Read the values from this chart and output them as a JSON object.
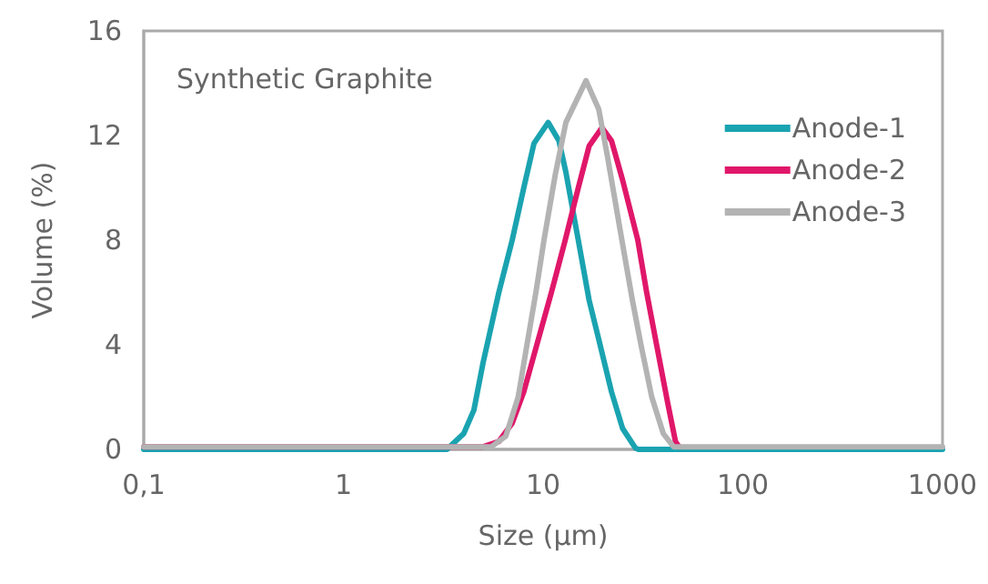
{
  "chart_data": {
    "type": "line",
    "xlabel": "Size (μm)",
    "ylabel": "Volume (%)",
    "annotations": [
      "Synthetic Graphite"
    ],
    "log": "x",
    "xlim": [
      0.1,
      1000
    ],
    "xticks": [
      {
        "value": 0.1,
        "label": "0,1"
      },
      1,
      10,
      100,
      1000
    ],
    "ylim": [
      0,
      16
    ],
    "yticks": [
      0,
      4,
      8,
      12,
      16
    ],
    "grid": false,
    "legend": "top right",
    "marker": "none",
    "line_style": "solid",
    "series": [
      {
        "name": "Anode-1",
        "color": "#1aa3b0",
        "x": [
          0.1,
          3.3,
          4,
          4.5,
          5,
          6,
          7,
          8,
          9,
          10.6,
          12,
          13,
          15,
          17,
          19,
          22,
          25,
          29,
          30,
          1000
        ],
        "values": [
          0,
          0,
          0.6,
          1.5,
          3.3,
          6,
          8,
          10,
          11.7,
          12.5,
          11.8,
          10.6,
          8,
          5.7,
          4.2,
          2.2,
          0.8,
          0.05,
          0,
          0
        ]
      },
      {
        "name": "Anode-2",
        "color": "#e0176a",
        "x": [
          0.1,
          5,
          6,
          7,
          8,
          9.3,
          11,
          12.9,
          15,
          17,
          19.7,
          22,
          25,
          29.8,
          33,
          37,
          42,
          46,
          48
        ],
        "values": [
          0.1,
          0.1,
          0.3,
          1,
          2.2,
          4,
          6,
          8,
          10,
          11.6,
          12.3,
          11.8,
          10.3,
          8,
          6,
          4,
          1.8,
          0.3,
          0.1
        ]
      },
      {
        "name": "Anode-3",
        "color": "#b3b3b3",
        "x": [
          0.1,
          5.5,
          6.5,
          7.5,
          8.3,
          9.2,
          10.1,
          11.5,
          13,
          16.4,
          19,
          21,
          24.8,
          28,
          30.9,
          35,
          40,
          45,
          1000
        ],
        "values": [
          0.1,
          0.1,
          0.5,
          2,
          4,
          6,
          8,
          10.5,
          12.5,
          14.1,
          13,
          11.2,
          8,
          5.7,
          4,
          2,
          0.6,
          0.1,
          0.1
        ]
      }
    ]
  }
}
